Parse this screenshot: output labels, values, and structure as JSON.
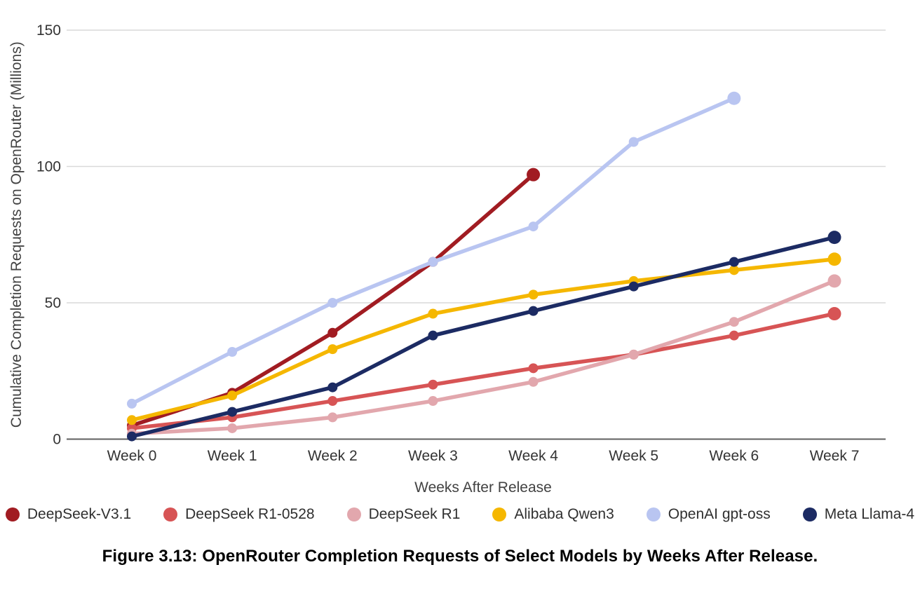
{
  "figure": {
    "caption": "Figure 3.13: OpenRouter Completion Requests of Select Models by Weeks After Release."
  },
  "chart_data": {
    "type": "line",
    "title": "",
    "xlabel": "Weeks After Release",
    "ylabel": "Cumulative Completion Requests on OpenRouter (Millions)",
    "categories": [
      "Week 0",
      "Week 1",
      "Week 2",
      "Week 3",
      "Week 4",
      "Week 5",
      "Week 6",
      "Week 7"
    ],
    "y_ticks": [
      0,
      50,
      100,
      150
    ],
    "ylim": [
      0,
      150
    ],
    "grid": "horizontal",
    "legend_position": "bottom",
    "marker": "circle",
    "colors": {
      "grid_line": "#d9d9d9",
      "axis_line": "#5f5f5f",
      "tick_text": "#333333",
      "axis_title_text": "#424242"
    },
    "series": [
      {
        "name": "DeepSeek-V3.1",
        "color": "#A11C22",
        "values": [
          5,
          17,
          39,
          65,
          97
        ]
      },
      {
        "name": "DeepSeek R1-0528",
        "color": "#D75455",
        "values": [
          4,
          8,
          14,
          20,
          26,
          31,
          38,
          46
        ]
      },
      {
        "name": "DeepSeek R1",
        "color": "#E2A7AD",
        "values": [
          2,
          4,
          8,
          14,
          21,
          31,
          43,
          58
        ]
      },
      {
        "name": "Alibaba Qwen3",
        "color": "#F5B700",
        "values": [
          7,
          16,
          33,
          46,
          53,
          58,
          62,
          66
        ]
      },
      {
        "name": "OpenAI gpt-oss",
        "color": "#B9C5F1",
        "values": [
          13,
          32,
          50,
          65,
          78,
          109,
          125
        ]
      },
      {
        "name": "Meta Llama-4",
        "color": "#1C2B63",
        "values": [
          1,
          10,
          19,
          38,
          47,
          56,
          65,
          74
        ]
      }
    ],
    "draw_order": [
      "DeepSeek-V3.1",
      "DeepSeek R1-0528",
      "DeepSeek R1",
      "Alibaba Qwen3",
      "OpenAI gpt-oss",
      "Meta Llama-4"
    ]
  }
}
